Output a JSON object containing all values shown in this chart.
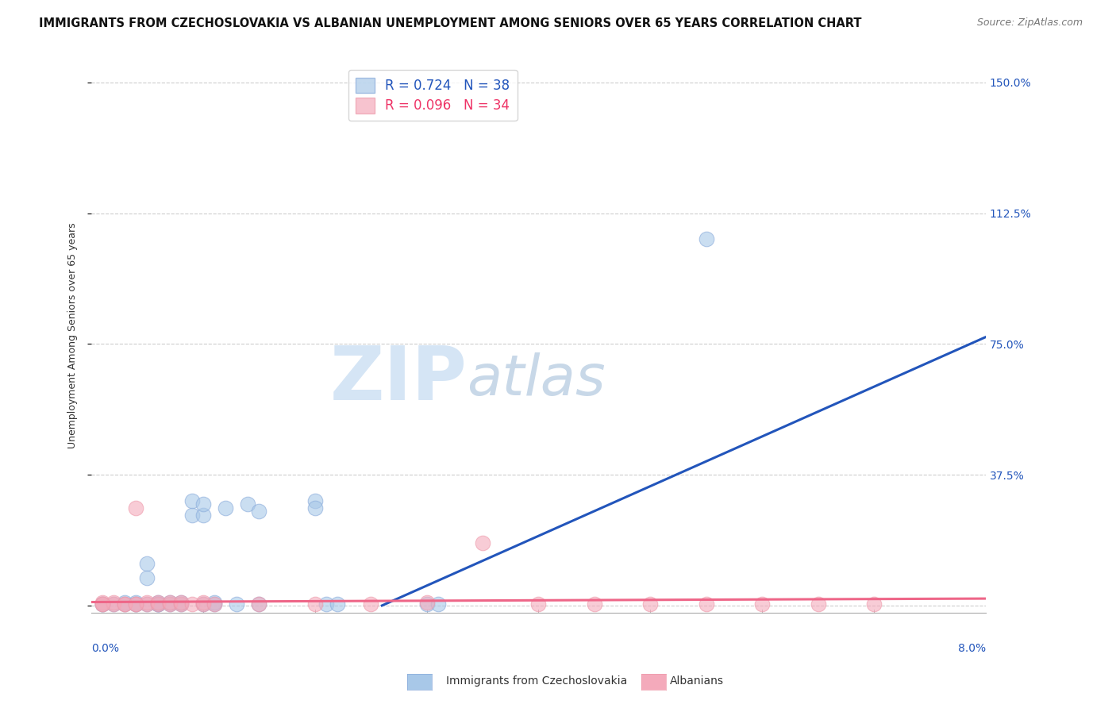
{
  "title": "IMMIGRANTS FROM CZECHOSLOVAKIA VS ALBANIAN UNEMPLOYMENT AMONG SENIORS OVER 65 YEARS CORRELATION CHART",
  "source": "Source: ZipAtlas.com",
  "ylabel": "Unemployment Among Seniors over 65 years",
  "y_ticks": [
    0.0,
    0.375,
    0.75,
    1.125,
    1.5
  ],
  "y_tick_labels": [
    "",
    "37.5%",
    "75.0%",
    "112.5%",
    "150.0%"
  ],
  "x_range": [
    0.0,
    0.08
  ],
  "y_range": [
    -0.02,
    1.57
  ],
  "legend_blue_r": "R = 0.724",
  "legend_blue_n": "N = 38",
  "legend_pink_r": "R = 0.096",
  "legend_pink_n": "N = 34",
  "blue_color": "#A8C8E8",
  "pink_color": "#F4AABB",
  "blue_line_color": "#2255BB",
  "pink_line_color": "#EE6688",
  "blue_scatter_x": [
    0.002,
    0.003,
    0.003,
    0.004,
    0.004,
    0.004,
    0.005,
    0.005,
    0.005,
    0.006,
    0.006,
    0.006,
    0.006,
    0.007,
    0.007,
    0.008,
    0.008,
    0.009,
    0.009,
    0.01,
    0.01,
    0.01,
    0.011,
    0.011,
    0.012,
    0.013,
    0.014,
    0.015,
    0.015,
    0.02,
    0.02,
    0.021,
    0.022,
    0.03,
    0.031,
    0.055,
    0.001,
    0.001
  ],
  "blue_scatter_y": [
    0.005,
    0.005,
    0.01,
    0.005,
    0.01,
    0.005,
    0.12,
    0.08,
    0.005,
    0.005,
    0.01,
    0.005,
    0.005,
    0.005,
    0.01,
    0.005,
    0.01,
    0.26,
    0.3,
    0.26,
    0.29,
    0.005,
    0.005,
    0.01,
    0.28,
    0.005,
    0.29,
    0.27,
    0.005,
    0.3,
    0.28,
    0.005,
    0.005,
    0.005,
    0.005,
    1.05,
    0.005,
    0.005
  ],
  "pink_scatter_x": [
    0.001,
    0.001,
    0.002,
    0.002,
    0.003,
    0.004,
    0.004,
    0.005,
    0.005,
    0.006,
    0.006,
    0.007,
    0.007,
    0.008,
    0.008,
    0.009,
    0.01,
    0.01,
    0.011,
    0.015,
    0.02,
    0.025,
    0.03,
    0.035,
    0.04,
    0.045,
    0.05,
    0.055,
    0.06,
    0.065,
    0.07,
    0.001,
    0.003,
    0.004
  ],
  "pink_scatter_y": [
    0.005,
    0.01,
    0.005,
    0.01,
    0.005,
    0.005,
    0.28,
    0.005,
    0.01,
    0.005,
    0.01,
    0.005,
    0.01,
    0.005,
    0.01,
    0.005,
    0.005,
    0.01,
    0.005,
    0.005,
    0.005,
    0.005,
    0.01,
    0.18,
    0.005,
    0.005,
    0.005,
    0.005,
    0.005,
    0.005,
    0.005,
    0.005,
    0.005,
    0.005
  ],
  "blue_line_x": [
    0.026,
    0.08
  ],
  "blue_line_y": [
    0.0,
    0.77
  ],
  "pink_line_x": [
    0.0,
    0.08
  ],
  "pink_line_y": [
    0.01,
    0.02
  ],
  "watermark_zip": "ZIP",
  "watermark_atlas": "atlas",
  "watermark_color_zip": "#D5E5F5",
  "watermark_color_atlas": "#C8D8E8",
  "background_color": "#FFFFFF"
}
